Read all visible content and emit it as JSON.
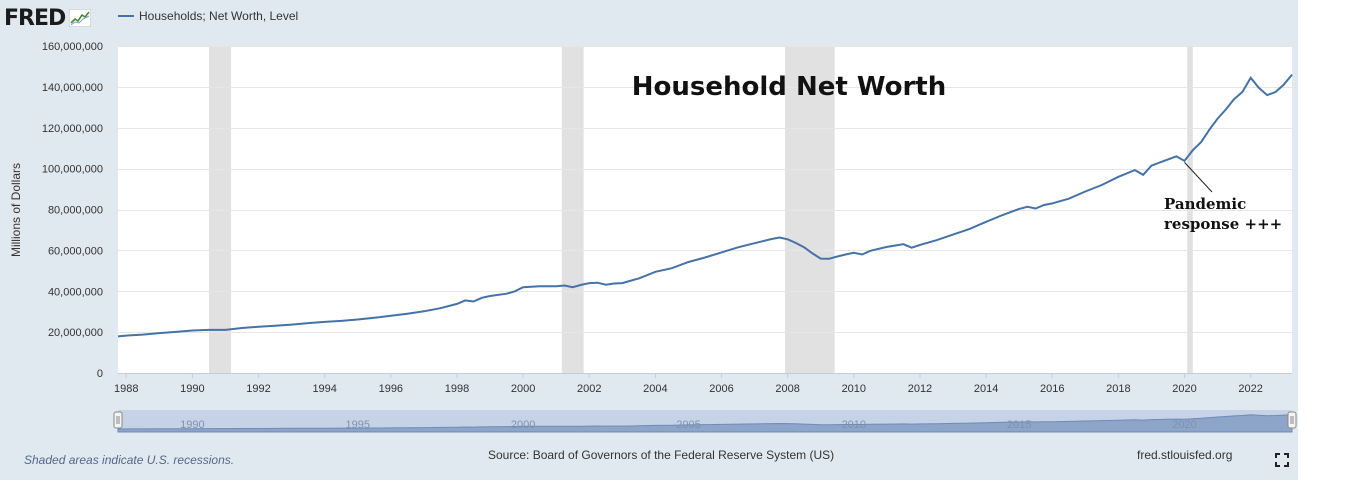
{
  "logo": {
    "text": "FRED"
  },
  "legend": {
    "series_label": "Households; Net Worth, Level",
    "color": "#4572a7"
  },
  "footer": {
    "recession_note": "Shaded areas indicate U.S. recessions.",
    "source": "Source: Board of Governors of the Federal Reserve System (US)",
    "site": "fred.stlouisfed.org"
  },
  "navigator": {
    "tick_labels": [
      "1990",
      "1995",
      "2000",
      "2005",
      "2010",
      "2015",
      "2020"
    ]
  },
  "colors": {
    "frame": "#e1e9f0",
    "series": "#4572a7",
    "recession": "#e1e1e1",
    "navigator_fill": "#8ca5c9"
  },
  "chart_data": {
    "type": "line",
    "title": "Household Net Worth",
    "ylabel": "Millions of Dollars",
    "xlabel": "",
    "xlim": [
      1987.75,
      2023.25
    ],
    "ylim": [
      0,
      160000000
    ],
    "yticks": [
      0,
      20000000,
      40000000,
      60000000,
      80000000,
      100000000,
      120000000,
      140000000,
      160000000
    ],
    "ytick_labels": [
      "0",
      "20,000,000",
      "40,000,000",
      "60,000,000",
      "80,000,000",
      "100,000,000",
      "120,000,000",
      "140,000,000",
      "160,000,000"
    ],
    "xticks": [
      1988,
      1990,
      1992,
      1994,
      1996,
      1998,
      2000,
      2002,
      2004,
      2006,
      2008,
      2010,
      2012,
      2014,
      2016,
      2018,
      2020,
      2022
    ],
    "grid": true,
    "recessions": [
      [
        1990.5,
        1991.17
      ],
      [
        2001.17,
        2001.83
      ],
      [
        2007.92,
        2009.42
      ],
      [
        2020.08,
        2020.25
      ]
    ],
    "annotation": {
      "text_lines": [
        "Pandemic",
        "response +++"
      ],
      "point": [
        2020.0,
        105000000
      ]
    },
    "series": [
      {
        "name": "Households; Net Worth, Level",
        "points": [
          [
            1987.75,
            17900000
          ],
          [
            1988.0,
            18300000
          ],
          [
            1988.5,
            18800000
          ],
          [
            1989.0,
            19500000
          ],
          [
            1989.5,
            20100000
          ],
          [
            1990.0,
            20800000
          ],
          [
            1990.5,
            21100000
          ],
          [
            1991.0,
            21100000
          ],
          [
            1991.5,
            22000000
          ],
          [
            1992.0,
            22600000
          ],
          [
            1992.5,
            23100000
          ],
          [
            1993.0,
            23700000
          ],
          [
            1993.5,
            24400000
          ],
          [
            1994.0,
            25000000
          ],
          [
            1994.5,
            25500000
          ],
          [
            1995.0,
            26200000
          ],
          [
            1995.5,
            27000000
          ],
          [
            1996.0,
            28000000
          ],
          [
            1996.5,
            29000000
          ],
          [
            1997.0,
            30200000
          ],
          [
            1997.5,
            31700000
          ],
          [
            1998.0,
            33800000
          ],
          [
            1998.25,
            35500000
          ],
          [
            1998.5,
            35000000
          ],
          [
            1998.75,
            36800000
          ],
          [
            1999.0,
            37700000
          ],
          [
            1999.5,
            38800000
          ],
          [
            1999.75,
            40000000
          ],
          [
            2000.0,
            42000000
          ],
          [
            2000.5,
            42400000
          ],
          [
            2001.0,
            42400000
          ],
          [
            2001.25,
            42800000
          ],
          [
            2001.5,
            42000000
          ],
          [
            2001.75,
            43100000
          ],
          [
            2002.0,
            44000000
          ],
          [
            2002.25,
            44200000
          ],
          [
            2002.5,
            43200000
          ],
          [
            2002.75,
            43800000
          ],
          [
            2003.0,
            44000000
          ],
          [
            2003.5,
            46300000
          ],
          [
            2004.0,
            49500000
          ],
          [
            2004.5,
            51300000
          ],
          [
            2005.0,
            54300000
          ],
          [
            2005.5,
            56500000
          ],
          [
            2006.0,
            59000000
          ],
          [
            2006.5,
            61500000
          ],
          [
            2007.0,
            63500000
          ],
          [
            2007.5,
            65500000
          ],
          [
            2007.75,
            66300000
          ],
          [
            2008.0,
            65400000
          ],
          [
            2008.25,
            63600000
          ],
          [
            2008.5,
            61500000
          ],
          [
            2008.75,
            58500000
          ],
          [
            2009.0,
            56000000
          ],
          [
            2009.25,
            55900000
          ],
          [
            2009.5,
            57000000
          ],
          [
            2009.75,
            58000000
          ],
          [
            2010.0,
            58800000
          ],
          [
            2010.25,
            58000000
          ],
          [
            2010.5,
            59800000
          ],
          [
            2011.0,
            61700000
          ],
          [
            2011.5,
            63000000
          ],
          [
            2011.75,
            61300000
          ],
          [
            2012.0,
            62700000
          ],
          [
            2012.5,
            65000000
          ],
          [
            2013.0,
            67700000
          ],
          [
            2013.5,
            70500000
          ],
          [
            2014.0,
            74000000
          ],
          [
            2014.5,
            77300000
          ],
          [
            2015.0,
            80300000
          ],
          [
            2015.25,
            81300000
          ],
          [
            2015.5,
            80500000
          ],
          [
            2015.75,
            82200000
          ],
          [
            2016.0,
            83000000
          ],
          [
            2016.5,
            85300000
          ],
          [
            2017.0,
            88800000
          ],
          [
            2017.5,
            92000000
          ],
          [
            2018.0,
            96000000
          ],
          [
            2018.5,
            99300000
          ],
          [
            2018.75,
            97000000
          ],
          [
            2019.0,
            101500000
          ],
          [
            2019.5,
            104500000
          ],
          [
            2019.75,
            106000000
          ],
          [
            2020.0,
            103800000
          ],
          [
            2020.25,
            109000000
          ],
          [
            2020.5,
            113000000
          ],
          [
            2020.75,
            119000000
          ],
          [
            2021.0,
            124500000
          ],
          [
            2021.25,
            129000000
          ],
          [
            2021.5,
            134000000
          ],
          [
            2021.75,
            137500000
          ],
          [
            2022.0,
            144500000
          ],
          [
            2022.25,
            139500000
          ],
          [
            2022.5,
            136000000
          ],
          [
            2022.75,
            137500000
          ],
          [
            2023.0,
            141000000
          ],
          [
            2023.25,
            146000000
          ]
        ]
      }
    ]
  }
}
